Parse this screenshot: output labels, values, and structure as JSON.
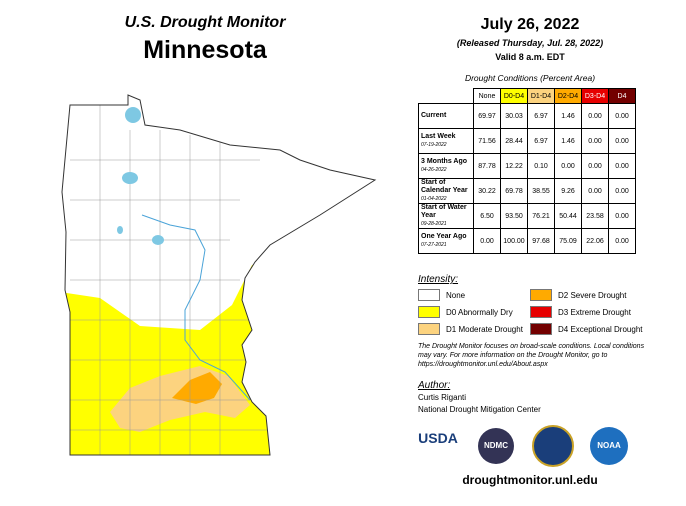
{
  "header": {
    "title": "U.S. Drought Monitor",
    "state": "Minnesota"
  },
  "info": {
    "date": "July 26, 2022",
    "released": "(Released Thursday, Jul. 28, 2022)",
    "valid": "Valid 8 a.m. EDT"
  },
  "table": {
    "caption": "Drought Conditions (Percent Area)",
    "columns": [
      "None",
      "D0-D4",
      "D1-D4",
      "D2-D4",
      "D3-D4",
      "D4"
    ],
    "rows": [
      {
        "label": "Current",
        "values": [
          "69.97",
          "30.03",
          "6.97",
          "1.46",
          "0.00",
          "0.00"
        ]
      },
      {
        "label": "Last Week",
        "date": "07-19-2022",
        "values": [
          "71.56",
          "28.44",
          "6.97",
          "1.46",
          "0.00",
          "0.00"
        ]
      },
      {
        "label": "3 Months Ago",
        "date": "04-26-2022",
        "values": [
          "87.78",
          "12.22",
          "0.10",
          "0.00",
          "0.00",
          "0.00"
        ]
      },
      {
        "label": "Start of Calendar Year",
        "date": "01-04-2022",
        "values": [
          "30.22",
          "69.78",
          "38.55",
          "9.26",
          "0.00",
          "0.00"
        ]
      },
      {
        "label": "Start of Water Year",
        "date": "09-28-2021",
        "values": [
          "6.50",
          "93.50",
          "76.21",
          "50.44",
          "23.58",
          "0.00"
        ]
      },
      {
        "label": "One Year Ago",
        "date": "07-27-2021",
        "values": [
          "0.00",
          "100.00",
          "97.68",
          "75.09",
          "22.06",
          "0.00"
        ]
      }
    ]
  },
  "legend": {
    "title": "Intensity:",
    "items": [
      "None",
      "D0 Abnormally Dry",
      "D1 Moderate Drought",
      "D2 Severe Drought",
      "D3 Extreme Drought",
      "D4 Exceptional Drought"
    ]
  },
  "note": "The Drought Monitor focuses on broad-scale conditions. Local conditions may vary. For more information on the Drought Monitor, go to https://droughtmonitor.unl.edu/About.aspx",
  "author": {
    "heading": "Author:",
    "name": "Curtis Riganti",
    "organization": "National Drought Mitigation Center"
  },
  "logos": [
    "USDA",
    "NDMC",
    "NOAA"
  ],
  "website": "droughtmonitor.unl.edu"
}
